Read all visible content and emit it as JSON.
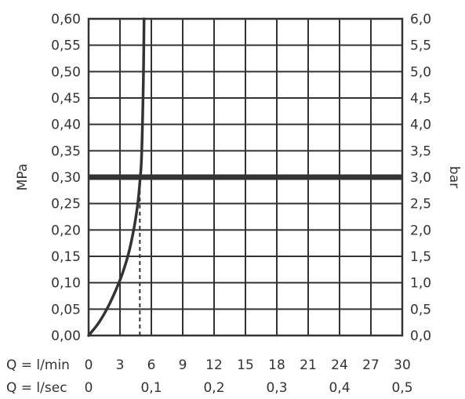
{
  "chart_data": {
    "type": "line",
    "ylabel_left": "MPa",
    "ylabel_right": "bar",
    "x_row_label_lmin": "Q = l/min",
    "x_row_label_lsec": "Q = l/sec",
    "xlim": [
      0,
      30
    ],
    "ylim": [
      0,
      0.6
    ],
    "grid": true,
    "x_ticks_lmin": [
      "0",
      "3",
      "6",
      "9",
      "12",
      "15",
      "18",
      "21",
      "24",
      "27",
      "30"
    ],
    "x_ticks_lsec": [
      {
        "x": 0,
        "label": "0"
      },
      {
        "x": 6,
        "label": "0,1"
      },
      {
        "x": 12,
        "label": "0,2"
      },
      {
        "x": 18,
        "label": "0,3"
      },
      {
        "x": 24,
        "label": "0,4"
      },
      {
        "x": 30,
        "label": "0,5"
      }
    ],
    "y_ticks_left": [
      "0,00",
      "0,05",
      "0,10",
      "0,15",
      "0,20",
      "0,25",
      "0,30",
      "0,35",
      "0,40",
      "0,45",
      "0,50",
      "0,55",
      "0,60"
    ],
    "y_ticks_right": [
      "0,0",
      "0,5",
      "1,0",
      "1,5",
      "2,0",
      "2,5",
      "3,0",
      "3,5",
      "4,0",
      "4,5",
      "5,0",
      "5,5",
      "6,0"
    ],
    "reference_line": {
      "y": 0.3
    },
    "marker_line": {
      "x": 4.9,
      "y_to": 0.3
    },
    "series": [
      {
        "x": [
          0,
          1,
          2,
          3,
          3.6,
          4.0,
          4.4,
          4.7,
          4.9,
          5.05,
          5.15,
          5.25,
          5.3
        ],
        "y": [
          0,
          0.025,
          0.06,
          0.105,
          0.14,
          0.17,
          0.21,
          0.25,
          0.29,
          0.33,
          0.4,
          0.5,
          0.6
        ]
      }
    ],
    "colors": {
      "line": "#333333",
      "grid": "#333333",
      "text": "#333333"
    }
  }
}
